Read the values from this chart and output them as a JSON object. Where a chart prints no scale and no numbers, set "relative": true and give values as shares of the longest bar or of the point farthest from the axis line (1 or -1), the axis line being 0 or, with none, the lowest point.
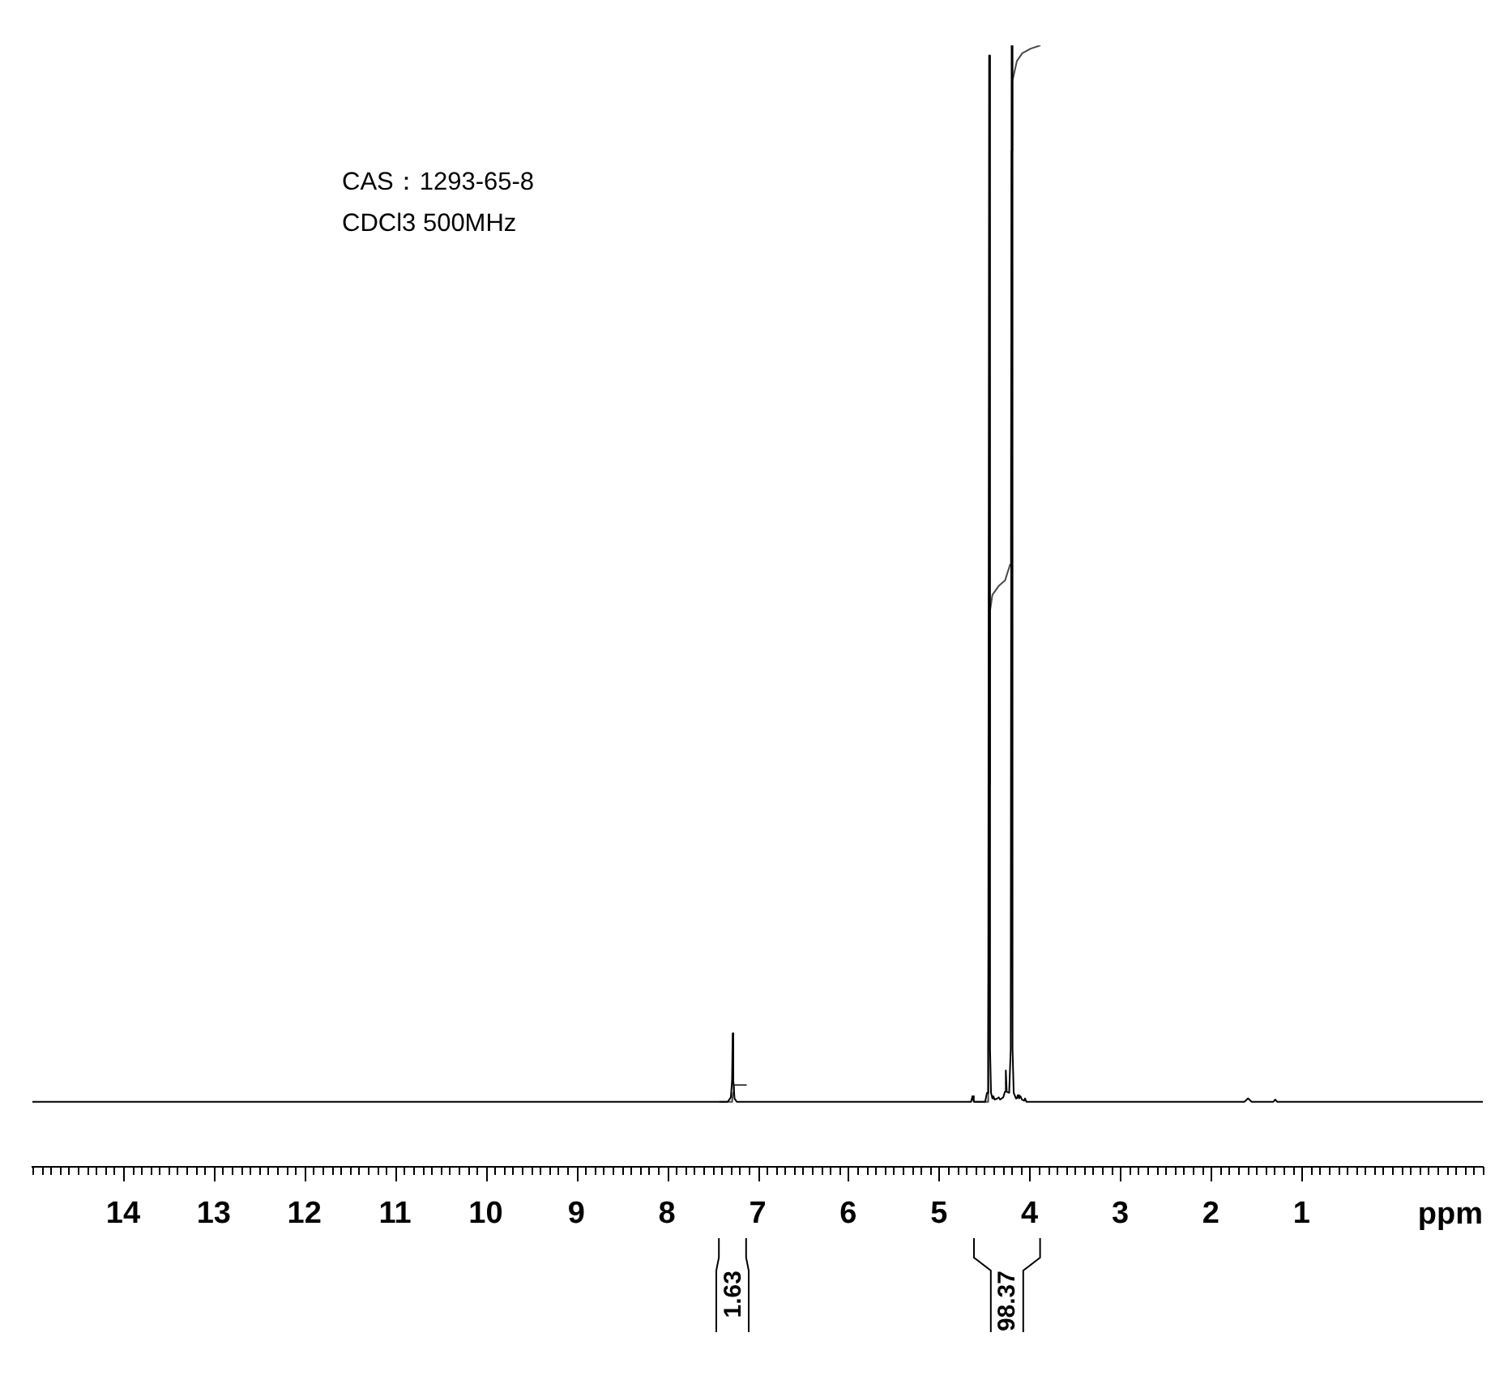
{
  "chart_data": {
    "type": "line",
    "relative": true,
    "xlim": [
      15,
      -1
    ],
    "xticks": [
      {
        "value": 15,
        "label": null
      },
      {
        "value": 14.9,
        "label": null
      },
      {
        "value": 14.8,
        "label": null
      },
      {
        "value": 14.7,
        "label": null
      },
      {
        "value": 14.6,
        "label": null
      },
      {
        "value": 14.5,
        "label": null
      },
      {
        "value": 14.4,
        "label": null
      },
      {
        "value": 14.3,
        "label": null
      },
      {
        "value": 14.2,
        "label": null
      },
      {
        "value": 14.1,
        "label": null
      },
      14,
      {
        "value": 13.9,
        "label": null
      },
      {
        "value": 13.8,
        "label": null
      },
      {
        "value": 13.7,
        "label": null
      },
      {
        "value": 13.6,
        "label": null
      },
      {
        "value": 13.5,
        "label": null
      },
      {
        "value": 13.4,
        "label": null
      },
      {
        "value": 13.3,
        "label": null
      },
      {
        "value": 13.2,
        "label": null
      },
      {
        "value": 13.1,
        "label": null
      },
      13,
      {
        "value": 12.9,
        "label": null
      },
      {
        "value": 12.8,
        "label": null
      },
      {
        "value": 12.7,
        "label": null
      },
      {
        "value": 12.6,
        "label": null
      },
      {
        "value": 12.5,
        "label": null
      },
      {
        "value": 12.4,
        "label": null
      },
      {
        "value": 12.3,
        "label": null
      },
      {
        "value": 12.2,
        "label": null
      },
      {
        "value": 12.1,
        "label": null
      },
      12,
      {
        "value": 11.9,
        "label": null
      },
      {
        "value": 11.8,
        "label": null
      },
      {
        "value": 11.7,
        "label": null
      },
      {
        "value": 11.6,
        "label": null
      },
      {
        "value": 11.5,
        "label": null
      },
      {
        "value": 11.4,
        "label": null
      },
      {
        "value": 11.3,
        "label": null
      },
      {
        "value": 11.2,
        "label": null
      },
      {
        "value": 11.1,
        "label": null
      },
      11,
      {
        "value": 10.9,
        "label": null
      },
      {
        "value": 10.8,
        "label": null
      },
      {
        "value": 10.7,
        "label": null
      },
      {
        "value": 10.6,
        "label": null
      },
      {
        "value": 10.5,
        "label": null
      },
      {
        "value": 10.4,
        "label": null
      },
      {
        "value": 10.3,
        "label": null
      },
      {
        "value": 10.2,
        "label": null
      },
      {
        "value": 10.1,
        "label": null
      },
      10,
      {
        "value": 9.9,
        "label": null
      },
      {
        "value": 9.8,
        "label": null
      },
      {
        "value": 9.7,
        "label": null
      },
      {
        "value": 9.6,
        "label": null
      },
      {
        "value": 9.5,
        "label": null
      },
      {
        "value": 9.4,
        "label": null
      },
      {
        "value": 9.3,
        "label": null
      },
      {
        "value": 9.2,
        "label": null
      },
      {
        "value": 9.1,
        "label": null
      },
      9,
      {
        "value": 8.9,
        "label": null
      },
      {
        "value": 8.8,
        "label": null
      },
      {
        "value": 8.7,
        "label": null
      },
      {
        "value": 8.6,
        "label": null
      },
      {
        "value": 8.5,
        "label": null
      },
      {
        "value": 8.4,
        "label": null
      },
      {
        "value": 8.3,
        "label": null
      },
      {
        "value": 8.2,
        "label": null
      },
      {
        "value": 8.1,
        "label": null
      },
      8,
      {
        "value": 7.9,
        "label": null
      },
      {
        "value": 7.8,
        "label": null
      },
      {
        "value": 7.7,
        "label": null
      },
      {
        "value": 7.6,
        "label": null
      },
      {
        "value": 7.5,
        "label": null
      },
      {
        "value": 7.4,
        "label": null
      },
      {
        "value": 7.3,
        "label": null
      },
      {
        "value": 7.2,
        "label": null
      },
      {
        "value": 7.1,
        "label": null
      },
      7,
      {
        "value": 6.9,
        "label": null
      },
      {
        "value": 6.8,
        "label": null
      },
      {
        "value": 6.7,
        "label": null
      },
      {
        "value": 6.6,
        "label": null
      },
      {
        "value": 6.5,
        "label": null
      },
      {
        "value": 6.4,
        "label": null
      },
      {
        "value": 6.3,
        "label": null
      },
      {
        "value": 6.2,
        "label": null
      },
      {
        "value": 6.1,
        "label": null
      },
      6,
      {
        "value": 5.9,
        "label": null
      },
      {
        "value": 5.8,
        "label": null
      },
      {
        "value": 5.7,
        "label": null
      },
      {
        "value": 5.6,
        "label": null
      },
      {
        "value": 5.5,
        "label": null
      },
      {
        "value": 5.4,
        "label": null
      },
      {
        "value": 5.3,
        "label": null
      },
      {
        "value": 5.2,
        "label": null
      },
      {
        "value": 5.1,
        "label": null
      },
      5,
      {
        "value": 4.9,
        "label": null
      },
      {
        "value": 4.8,
        "label": null
      },
      {
        "value": 4.7,
        "label": null
      },
      {
        "value": 4.6,
        "label": null
      },
      {
        "value": 4.5,
        "label": null
      },
      {
        "value": 4.4,
        "label": null
      },
      {
        "value": 4.3,
        "label": null
      },
      {
        "value": 4.2,
        "label": null
      },
      {
        "value": 4.1,
        "label": null
      },
      4,
      {
        "value": 3.9,
        "label": null
      },
      {
        "value": 3.8,
        "label": null
      },
      {
        "value": 3.7,
        "label": null
      },
      {
        "value": 3.6,
        "label": null
      },
      {
        "value": 3.5,
        "label": null
      },
      {
        "value": 3.4,
        "label": null
      },
      {
        "value": 3.3,
        "label": null
      },
      {
        "value": 3.2,
        "label": null
      },
      {
        "value": 3.1,
        "label": null
      },
      3,
      {
        "value": 2.9,
        "label": null
      },
      {
        "value": 2.8,
        "label": null
      },
      {
        "value": 2.7,
        "label": null
      },
      {
        "value": 2.6,
        "label": null
      },
      {
        "value": 2.5,
        "label": null
      },
      {
        "value": 2.4,
        "label": null
      },
      {
        "value": 2.3,
        "label": null
      },
      {
        "value": 2.2,
        "label": null
      },
      {
        "value": 2.1,
        "label": null
      },
      2,
      {
        "value": 1.9,
        "label": null
      },
      {
        "value": 1.8,
        "label": null
      },
      {
        "value": 1.7,
        "label": null
      },
      {
        "value": 1.6,
        "label": null
      },
      {
        "value": 1.5,
        "label": null
      },
      {
        "value": 1.4,
        "label": null
      },
      {
        "value": 1.3,
        "label": null
      },
      {
        "value": 1.2,
        "label": null
      },
      {
        "value": 1.1,
        "label": null
      },
      1,
      {
        "value": 0.9,
        "label": null
      },
      {
        "value": 0.8,
        "label": null
      },
      {
        "value": 0.7,
        "label": null
      },
      {
        "value": 0.6,
        "label": null
      },
      {
        "value": 0.5,
        "label": null
      },
      {
        "value": 0.4,
        "label": null
      },
      {
        "value": 0.3,
        "label": null
      },
      {
        "value": 0.2,
        "label": null
      },
      {
        "value": 0.1,
        "label": null
      },
      {
        "value": 0,
        "label": null
      },
      {
        "value": -0.1,
        "label": null
      },
      {
        "value": -0.2,
        "label": null
      },
      {
        "value": -0.3,
        "label": null
      },
      {
        "value": -0.4,
        "label": null
      },
      {
        "value": -0.5,
        "label": null
      },
      {
        "value": -0.6,
        "label": null
      },
      {
        "value": -0.7,
        "label": null
      },
      {
        "value": -0.8,
        "label": null
      },
      {
        "value": -0.9,
        "label": null
      },
      {
        "value": -1,
        "label": null
      }
    ],
    "xlabel": "ppm",
    "tick_labels": "x",
    "marker": "none",
    "series": [
      {
        "color": "#000000",
        "x": [
          15,
          7.33,
          7.295,
          7.282,
          7.275,
          7.268,
          7.255,
          7.23,
          4.7,
          4.645,
          4.63,
          4.615,
          4.49,
          4.47,
          4.456,
          4.446,
          4.436,
          4.425,
          4.41,
          4.4,
          4.385,
          4.355,
          4.34,
          4.325,
          4.29,
          4.272,
          4.262,
          4.252,
          4.225,
          4.208,
          4.198,
          4.188,
          4.175,
          4.15,
          4.14,
          4.13,
          4.115,
          4.1,
          4.085,
          4.06,
          4.05,
          4.035,
          3.95,
          1.63,
          1.59,
          1.55,
          1.31,
          1.29,
          1.27,
          -1
        ],
        "values": [
          0.058,
          0.058,
          0.062,
          0.077,
          0.119,
          0.077,
          0.061,
          0.058,
          0.058,
          0.058,
          0.063,
          0.058,
          0.058,
          0.066,
          0.105,
          0.991,
          0.105,
          0.066,
          0.061,
          0.063,
          0.06,
          0.061,
          0.062,
          0.06,
          0.062,
          0.067,
          0.086,
          0.067,
          0.066,
          0.105,
          1,
          0.105,
          0.066,
          0.061,
          0.061,
          0.064,
          0.061,
          0.063,
          0.06,
          0.059,
          0.061,
          0.058,
          0.058,
          0.058,
          0.061,
          0.058,
          0.058,
          0.06,
          0.058,
          0.058
        ]
      },
      {
        "color": "#4a4a4a",
        "x": [
          7.42,
          7.29,
          7.28,
          7.272,
          7.262,
          7.12
        ],
        "values": [
          0.058,
          0.058,
          0.06,
          0.066,
          0.073,
          0.073
        ]
      },
      {
        "color": "#4a4a4a",
        "x": [
          4.61,
          4.47,
          4.456,
          4.446,
          4.436,
          4.41,
          4.34,
          4.27,
          4.215,
          4.205,
          4.198,
          4.19,
          4.14,
          4.08,
          3.99,
          3.88
        ],
        "values": [
          0.058,
          0.058,
          0.105,
          0.341,
          0.496,
          0.51,
          0.518,
          0.523,
          0.537,
          0.623,
          0.906,
          0.968,
          0.986,
          0.993,
          0.997,
          1
        ]
      }
    ],
    "annotations": [
      "CAS：1293-65-8",
      "CDCl3 500MHz",
      "1.63",
      "98.37"
    ]
  }
}
